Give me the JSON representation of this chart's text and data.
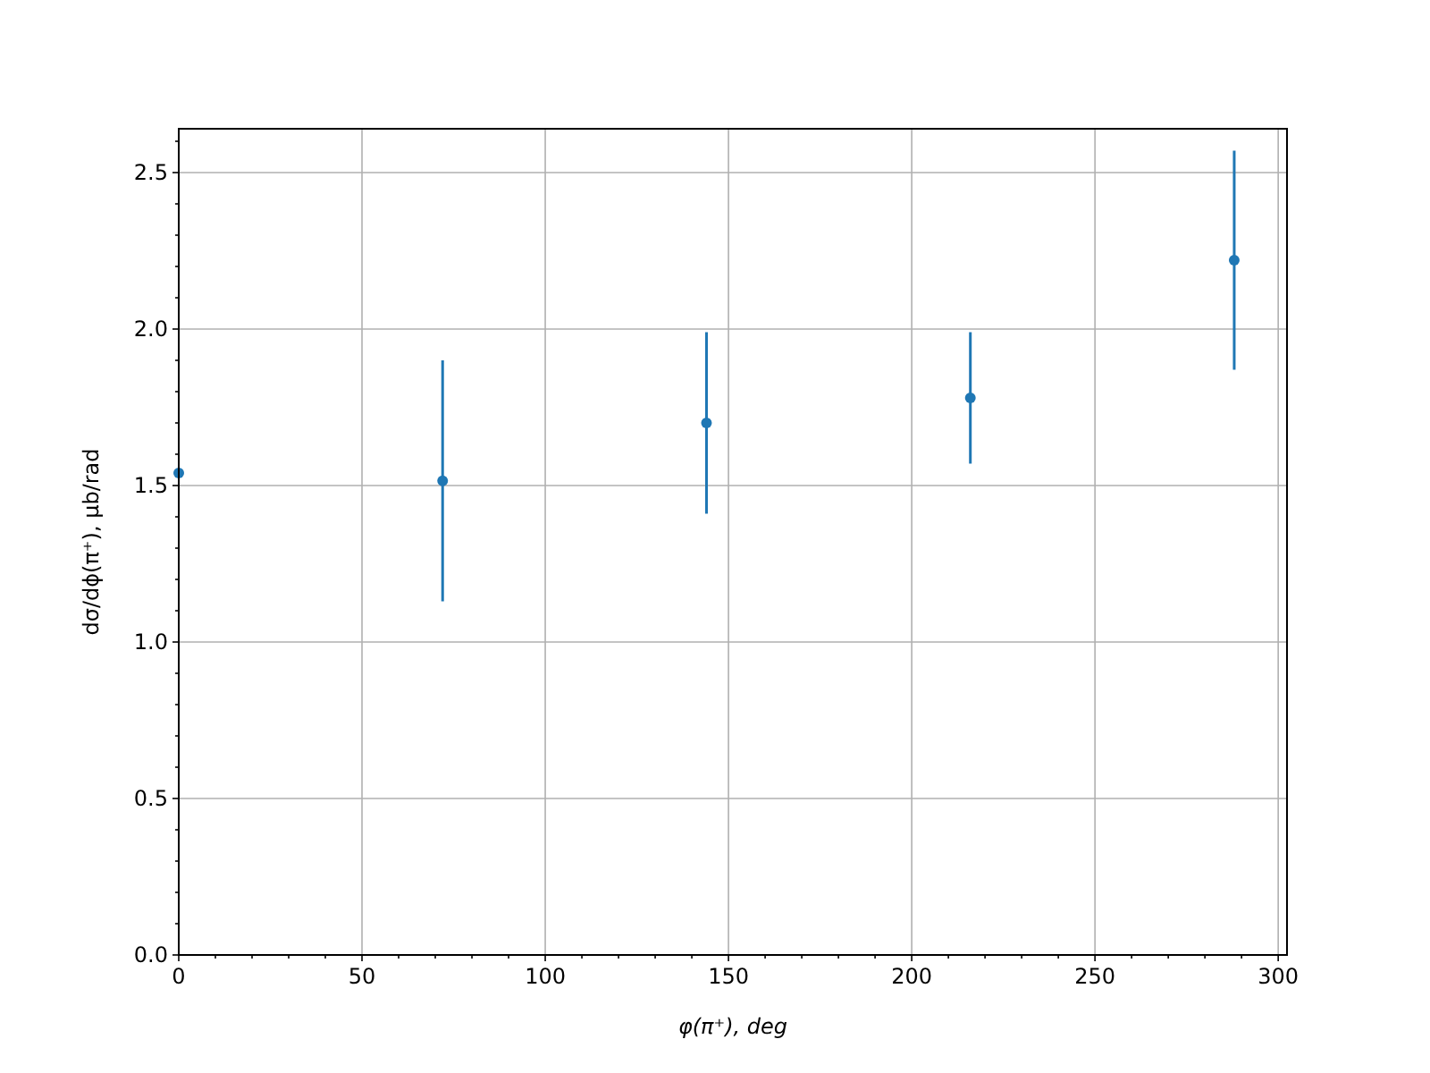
{
  "chart_data": {
    "type": "scatter",
    "xlabel": "φ(π⁺), deg",
    "ylabel": "dσ/dϕ(π⁺), μb/rad",
    "x": [
      0,
      72,
      144,
      216,
      288
    ],
    "series": [
      {
        "color": "#1f77b4",
        "values": [
          1.54,
          1.515,
          1.7,
          1.78,
          2.22
        ],
        "errors": [
          null,
          0.385,
          0.29,
          0.21,
          0.35
        ]
      }
    ],
    "xlim": [
      0,
      302.4
    ],
    "ylim": [
      0,
      2.64
    ],
    "xticks": [
      0,
      {
        "value": 10,
        "label": null
      },
      {
        "value": 20,
        "label": null
      },
      {
        "value": 30,
        "label": null
      },
      {
        "value": 40,
        "label": null
      },
      50,
      {
        "value": 60,
        "label": null
      },
      {
        "value": 70,
        "label": null
      },
      {
        "value": 80,
        "label": null
      },
      {
        "value": 90,
        "label": null
      },
      100,
      {
        "value": 110,
        "label": null
      },
      {
        "value": 120,
        "label": null
      },
      {
        "value": 130,
        "label": null
      },
      {
        "value": 140,
        "label": null
      },
      150,
      {
        "value": 160,
        "label": null
      },
      {
        "value": 170,
        "label": null
      },
      {
        "value": 180,
        "label": null
      },
      {
        "value": 190,
        "label": null
      },
      200,
      {
        "value": 210,
        "label": null
      },
      {
        "value": 220,
        "label": null
      },
      {
        "value": 230,
        "label": null
      },
      {
        "value": 240,
        "label": null
      },
      250,
      {
        "value": 260,
        "label": null
      },
      {
        "value": 270,
        "label": null
      },
      {
        "value": 280,
        "label": null
      },
      {
        "value": 290,
        "label": null
      },
      300
    ],
    "yticks": [
      {
        "value": 0,
        "label": "0.0"
      },
      {
        "value": 0.1,
        "label": null
      },
      {
        "value": 0.2,
        "label": null
      },
      {
        "value": 0.3,
        "label": null
      },
      {
        "value": 0.4,
        "label": null
      },
      0.5,
      {
        "value": 0.6,
        "label": null
      },
      {
        "value": 0.7,
        "label": null
      },
      {
        "value": 0.8,
        "label": null
      },
      {
        "value": 0.9,
        "label": null
      },
      {
        "value": 1,
        "label": "1.0"
      },
      {
        "value": 1.1,
        "label": null
      },
      {
        "value": 1.2,
        "label": null
      },
      {
        "value": 1.3,
        "label": null
      },
      {
        "value": 1.4,
        "label": null
      },
      1.5,
      {
        "value": 1.6,
        "label": null
      },
      {
        "value": 1.7,
        "label": null
      },
      {
        "value": 1.8,
        "label": null
      },
      {
        "value": 1.9,
        "label": null
      },
      {
        "value": 2,
        "label": "2.0"
      },
      {
        "value": 2.1,
        "label": null
      },
      {
        "value": 2.2,
        "label": null
      },
      {
        "value": 2.3,
        "label": null
      },
      {
        "value": 2.4,
        "label": null
      },
      2.5,
      {
        "value": 2.6,
        "label": null
      }
    ],
    "grid": true,
    "marker": "circle"
  }
}
